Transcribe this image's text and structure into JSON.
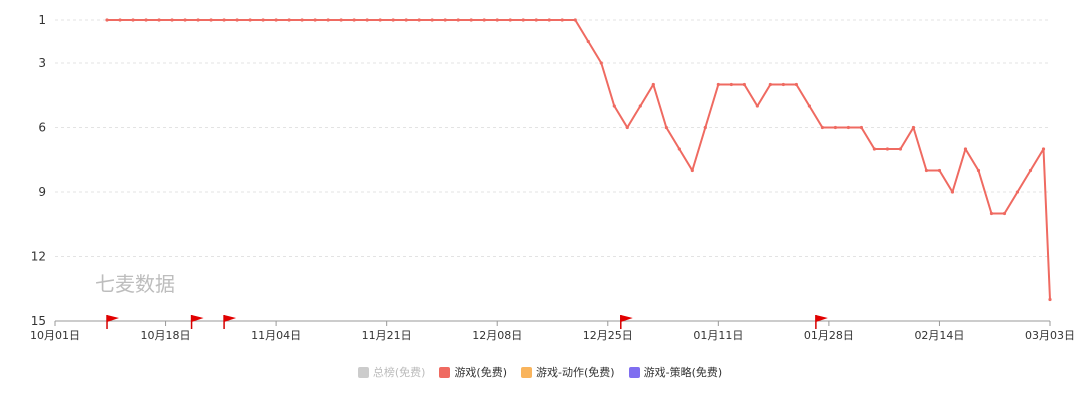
{
  "chart_data": {
    "type": "line",
    "title": "",
    "watermark": "七麦数据",
    "y_axis": {
      "ticks": [
        1,
        3,
        6,
        9,
        12,
        15
      ],
      "range": [
        1,
        15
      ],
      "inverted": true
    },
    "x_axis": {
      "ticks": [
        "10月01日",
        "10月18日",
        "11月04日",
        "11月21日",
        "12月08日",
        "12月25日",
        "01月11日",
        "01月28日",
        "02月14日",
        "03月03日"
      ],
      "start_day": 0,
      "end_day": 153
    },
    "grid": true,
    "legend_position": "bottom-center",
    "legend": [
      {
        "name": "总榜(免费)",
        "color": "#cccccc",
        "active": false
      },
      {
        "name": "游戏(免费)",
        "color": "#ef6a61",
        "active": true
      },
      {
        "name": "游戏-动作(免费)",
        "color": "#f9b45c",
        "active": true
      },
      {
        "name": "游戏-策略(免费)",
        "color": "#7f6ef0",
        "active": true
      }
    ],
    "flags": [
      {
        "day": 8
      },
      {
        "day": 21
      },
      {
        "day": 26
      },
      {
        "day": 87
      },
      {
        "day": 117
      }
    ],
    "series": [
      {
        "name": "游戏(免费)",
        "color": "#ef6a61",
        "points": [
          [
            8,
            1
          ],
          [
            10,
            1
          ],
          [
            12,
            1
          ],
          [
            14,
            1
          ],
          [
            16,
            1
          ],
          [
            18,
            1
          ],
          [
            20,
            1
          ],
          [
            22,
            1
          ],
          [
            24,
            1
          ],
          [
            26,
            1
          ],
          [
            28,
            1
          ],
          [
            30,
            1
          ],
          [
            32,
            1
          ],
          [
            34,
            1
          ],
          [
            36,
            1
          ],
          [
            38,
            1
          ],
          [
            40,
            1
          ],
          [
            42,
            1
          ],
          [
            44,
            1
          ],
          [
            46,
            1
          ],
          [
            48,
            1
          ],
          [
            50,
            1
          ],
          [
            52,
            1
          ],
          [
            54,
            1
          ],
          [
            56,
            1
          ],
          [
            58,
            1
          ],
          [
            60,
            1
          ],
          [
            62,
            1
          ],
          [
            64,
            1
          ],
          [
            66,
            1
          ],
          [
            68,
            1
          ],
          [
            70,
            1
          ],
          [
            72,
            1
          ],
          [
            74,
            1
          ],
          [
            76,
            1
          ],
          [
            78,
            1
          ],
          [
            80,
            1
          ],
          [
            82,
            2
          ],
          [
            84,
            3
          ],
          [
            86,
            5
          ],
          [
            88,
            6
          ],
          [
            90,
            5
          ],
          [
            92,
            4
          ],
          [
            94,
            6
          ],
          [
            96,
            7
          ],
          [
            98,
            8
          ],
          [
            100,
            6
          ],
          [
            102,
            4
          ],
          [
            104,
            4
          ],
          [
            106,
            4
          ],
          [
            108,
            5
          ],
          [
            110,
            4
          ],
          [
            112,
            4
          ],
          [
            114,
            4
          ],
          [
            116,
            5
          ],
          [
            118,
            6
          ],
          [
            120,
            6
          ],
          [
            122,
            6
          ],
          [
            124,
            6
          ],
          [
            126,
            7
          ],
          [
            128,
            7
          ],
          [
            130,
            7
          ],
          [
            132,
            6
          ],
          [
            134,
            8
          ],
          [
            136,
            8
          ],
          [
            138,
            9
          ],
          [
            140,
            7
          ],
          [
            142,
            8
          ],
          [
            144,
            10
          ],
          [
            146,
            10
          ],
          [
            148,
            9
          ],
          [
            150,
            8
          ],
          [
            152,
            7
          ],
          [
            153,
            14
          ]
        ]
      }
    ]
  }
}
